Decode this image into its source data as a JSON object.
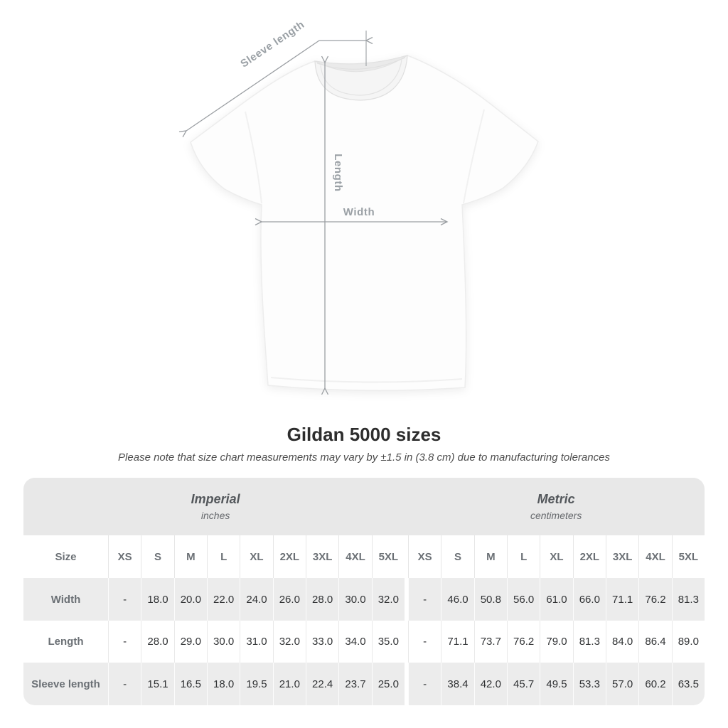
{
  "figure": {
    "labels": {
      "sleeve": "Sleeve length",
      "length": "Length",
      "width": "Width"
    },
    "arrow_color": "#9b9fa3",
    "shirt_color": "#fdfdfd"
  },
  "title": "Gildan 5000 sizes",
  "subtitle": "Please note that size chart measurements may vary by ±1.5 in (3.8 cm) due to manufacturing tolerances",
  "table": {
    "unit_groups": [
      {
        "name": "Imperial",
        "unit": "inches"
      },
      {
        "name": "Metric",
        "unit": "centimeters"
      }
    ],
    "size_header": "Size",
    "size_columns": [
      "XS",
      "S",
      "M",
      "L",
      "XL",
      "2XL",
      "3XL",
      "4XL",
      "5XL"
    ],
    "rows": [
      {
        "label": "Width",
        "imperial": [
          "-",
          "18.0",
          "20.0",
          "22.0",
          "24.0",
          "26.0",
          "28.0",
          "30.0",
          "32.0"
        ],
        "metric": [
          "-",
          "46.0",
          "50.8",
          "56.0",
          "61.0",
          "66.0",
          "71.1",
          "76.2",
          "81.3"
        ]
      },
      {
        "label": "Length",
        "imperial": [
          "-",
          "28.0",
          "29.0",
          "30.0",
          "31.0",
          "32.0",
          "33.0",
          "34.0",
          "35.0"
        ],
        "metric": [
          "-",
          "71.1",
          "73.7",
          "76.2",
          "79.0",
          "81.3",
          "84.0",
          "86.4",
          "89.0"
        ]
      },
      {
        "label": "Sleeve length",
        "imperial": [
          "-",
          "15.1",
          "16.5",
          "18.0",
          "19.5",
          "21.0",
          "22.4",
          "23.7",
          "25.0"
        ],
        "metric": [
          "-",
          "38.4",
          "42.0",
          "45.7",
          "49.5",
          "53.3",
          "57.0",
          "60.2",
          "63.5"
        ]
      }
    ]
  },
  "chart_data": {
    "type": "table",
    "title": "Gildan 5000 sizes",
    "columns": [
      "Size",
      "XS",
      "S",
      "M",
      "L",
      "XL",
      "2XL",
      "3XL",
      "4XL",
      "5XL"
    ],
    "units": [
      "inches",
      "centimeters"
    ],
    "rows_imperial": [
      [
        "Width",
        "-",
        18.0,
        20.0,
        22.0,
        24.0,
        26.0,
        28.0,
        30.0,
        32.0
      ],
      [
        "Length",
        "-",
        28.0,
        29.0,
        30.0,
        31.0,
        32.0,
        33.0,
        34.0,
        35.0
      ],
      [
        "Sleeve length",
        "-",
        15.1,
        16.5,
        18.0,
        19.5,
        21.0,
        22.4,
        23.7,
        25.0
      ]
    ],
    "rows_metric": [
      [
        "Width",
        "-",
        46.0,
        50.8,
        56.0,
        61.0,
        66.0,
        71.1,
        76.2,
        81.3
      ],
      [
        "Length",
        "-",
        71.1,
        73.7,
        76.2,
        79.0,
        81.3,
        84.0,
        86.4,
        89.0
      ],
      [
        "Sleeve length",
        "-",
        38.4,
        42.0,
        45.7,
        49.5,
        53.3,
        57.0,
        60.2,
        63.5
      ]
    ]
  }
}
